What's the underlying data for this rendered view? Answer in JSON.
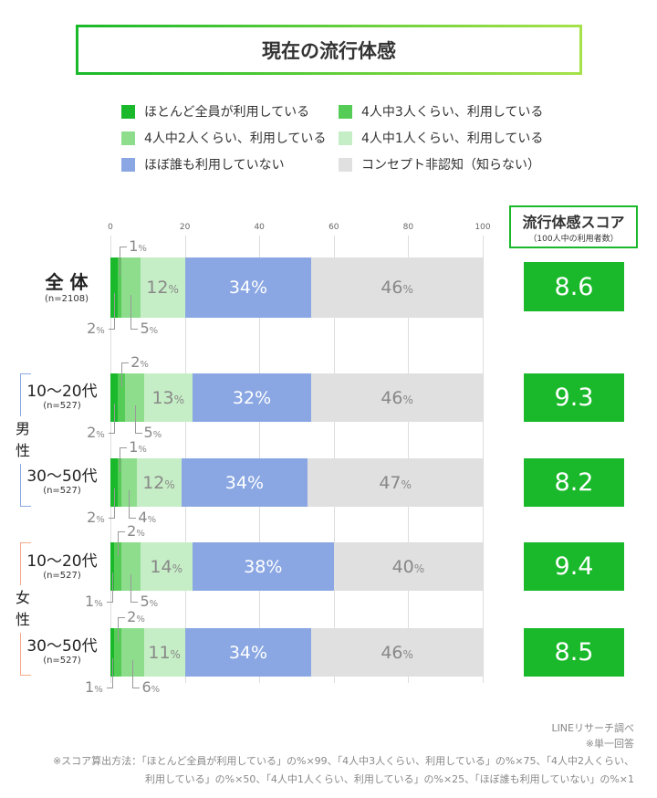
{
  "title": "現在の流行体感",
  "chart_data": {
    "type": "stacked-bar-horizontal",
    "xlim": [
      0,
      100
    ],
    "ticks": [
      0,
      20,
      40,
      60,
      80,
      100
    ],
    "grid": true,
    "legend_position": "top",
    "series": [
      {
        "name": "ほとんど全員が利用している",
        "color": "#1ab92b",
        "values": [
          2,
          2,
          2,
          1,
          1
        ]
      },
      {
        "name": "4人中3人くらい、利用している",
        "color": "#55cc55",
        "values": [
          1,
          2,
          1,
          2,
          2
        ]
      },
      {
        "name": "4人中2人くらい、利用している",
        "color": "#8ddd8d",
        "values": [
          5,
          5,
          4,
          5,
          6
        ]
      },
      {
        "name": "4人中1人くらい、利用している",
        "color": "#c6eec6",
        "values": [
          12,
          13,
          12,
          14,
          11
        ]
      },
      {
        "name": "ほぼ誰も利用していない",
        "color": "#8aa7e3",
        "values": [
          34,
          32,
          34,
          38,
          34
        ]
      },
      {
        "name": "コンセプト非認知（知らない）",
        "color": "#e0e0e0",
        "values": [
          46,
          46,
          47,
          40,
          46
        ]
      }
    ],
    "categories": [
      {
        "label": "全 体",
        "n": "(n=2108)",
        "score": "8.6"
      },
      {
        "label": "10〜20代",
        "n": "(n=527)",
        "score": "9.3"
      },
      {
        "label": "30〜50代",
        "n": "(n=527)",
        "score": "8.2"
      },
      {
        "label": "10〜20代",
        "n": "(n=527)",
        "score": "9.4"
      },
      {
        "label": "30〜50代",
        "n": "(n=527)",
        "score": "8.5"
      }
    ],
    "groups": [
      {
        "label": "男\n性",
        "color": "#8aa7e3"
      },
      {
        "label": "女\n性",
        "color": "#f5a98a"
      }
    ],
    "unit": "%"
  },
  "score_header": {
    "title": "流行体感スコア",
    "sub": "（100人中の利用者数）"
  },
  "footer": {
    "source": "LINEリサーチ調べ",
    "note": "※単一回答",
    "formula1": "※スコア算出方法：「ほとんど全員が利用している」の%×99、「4人中3人くらい、利用している」の%×75、「4人中2人くらい、",
    "formula2": "利用している」の%×50、「4人中1人くらい、利用している」の%×25、「ほぼ誰も利用していない」の%×1"
  }
}
